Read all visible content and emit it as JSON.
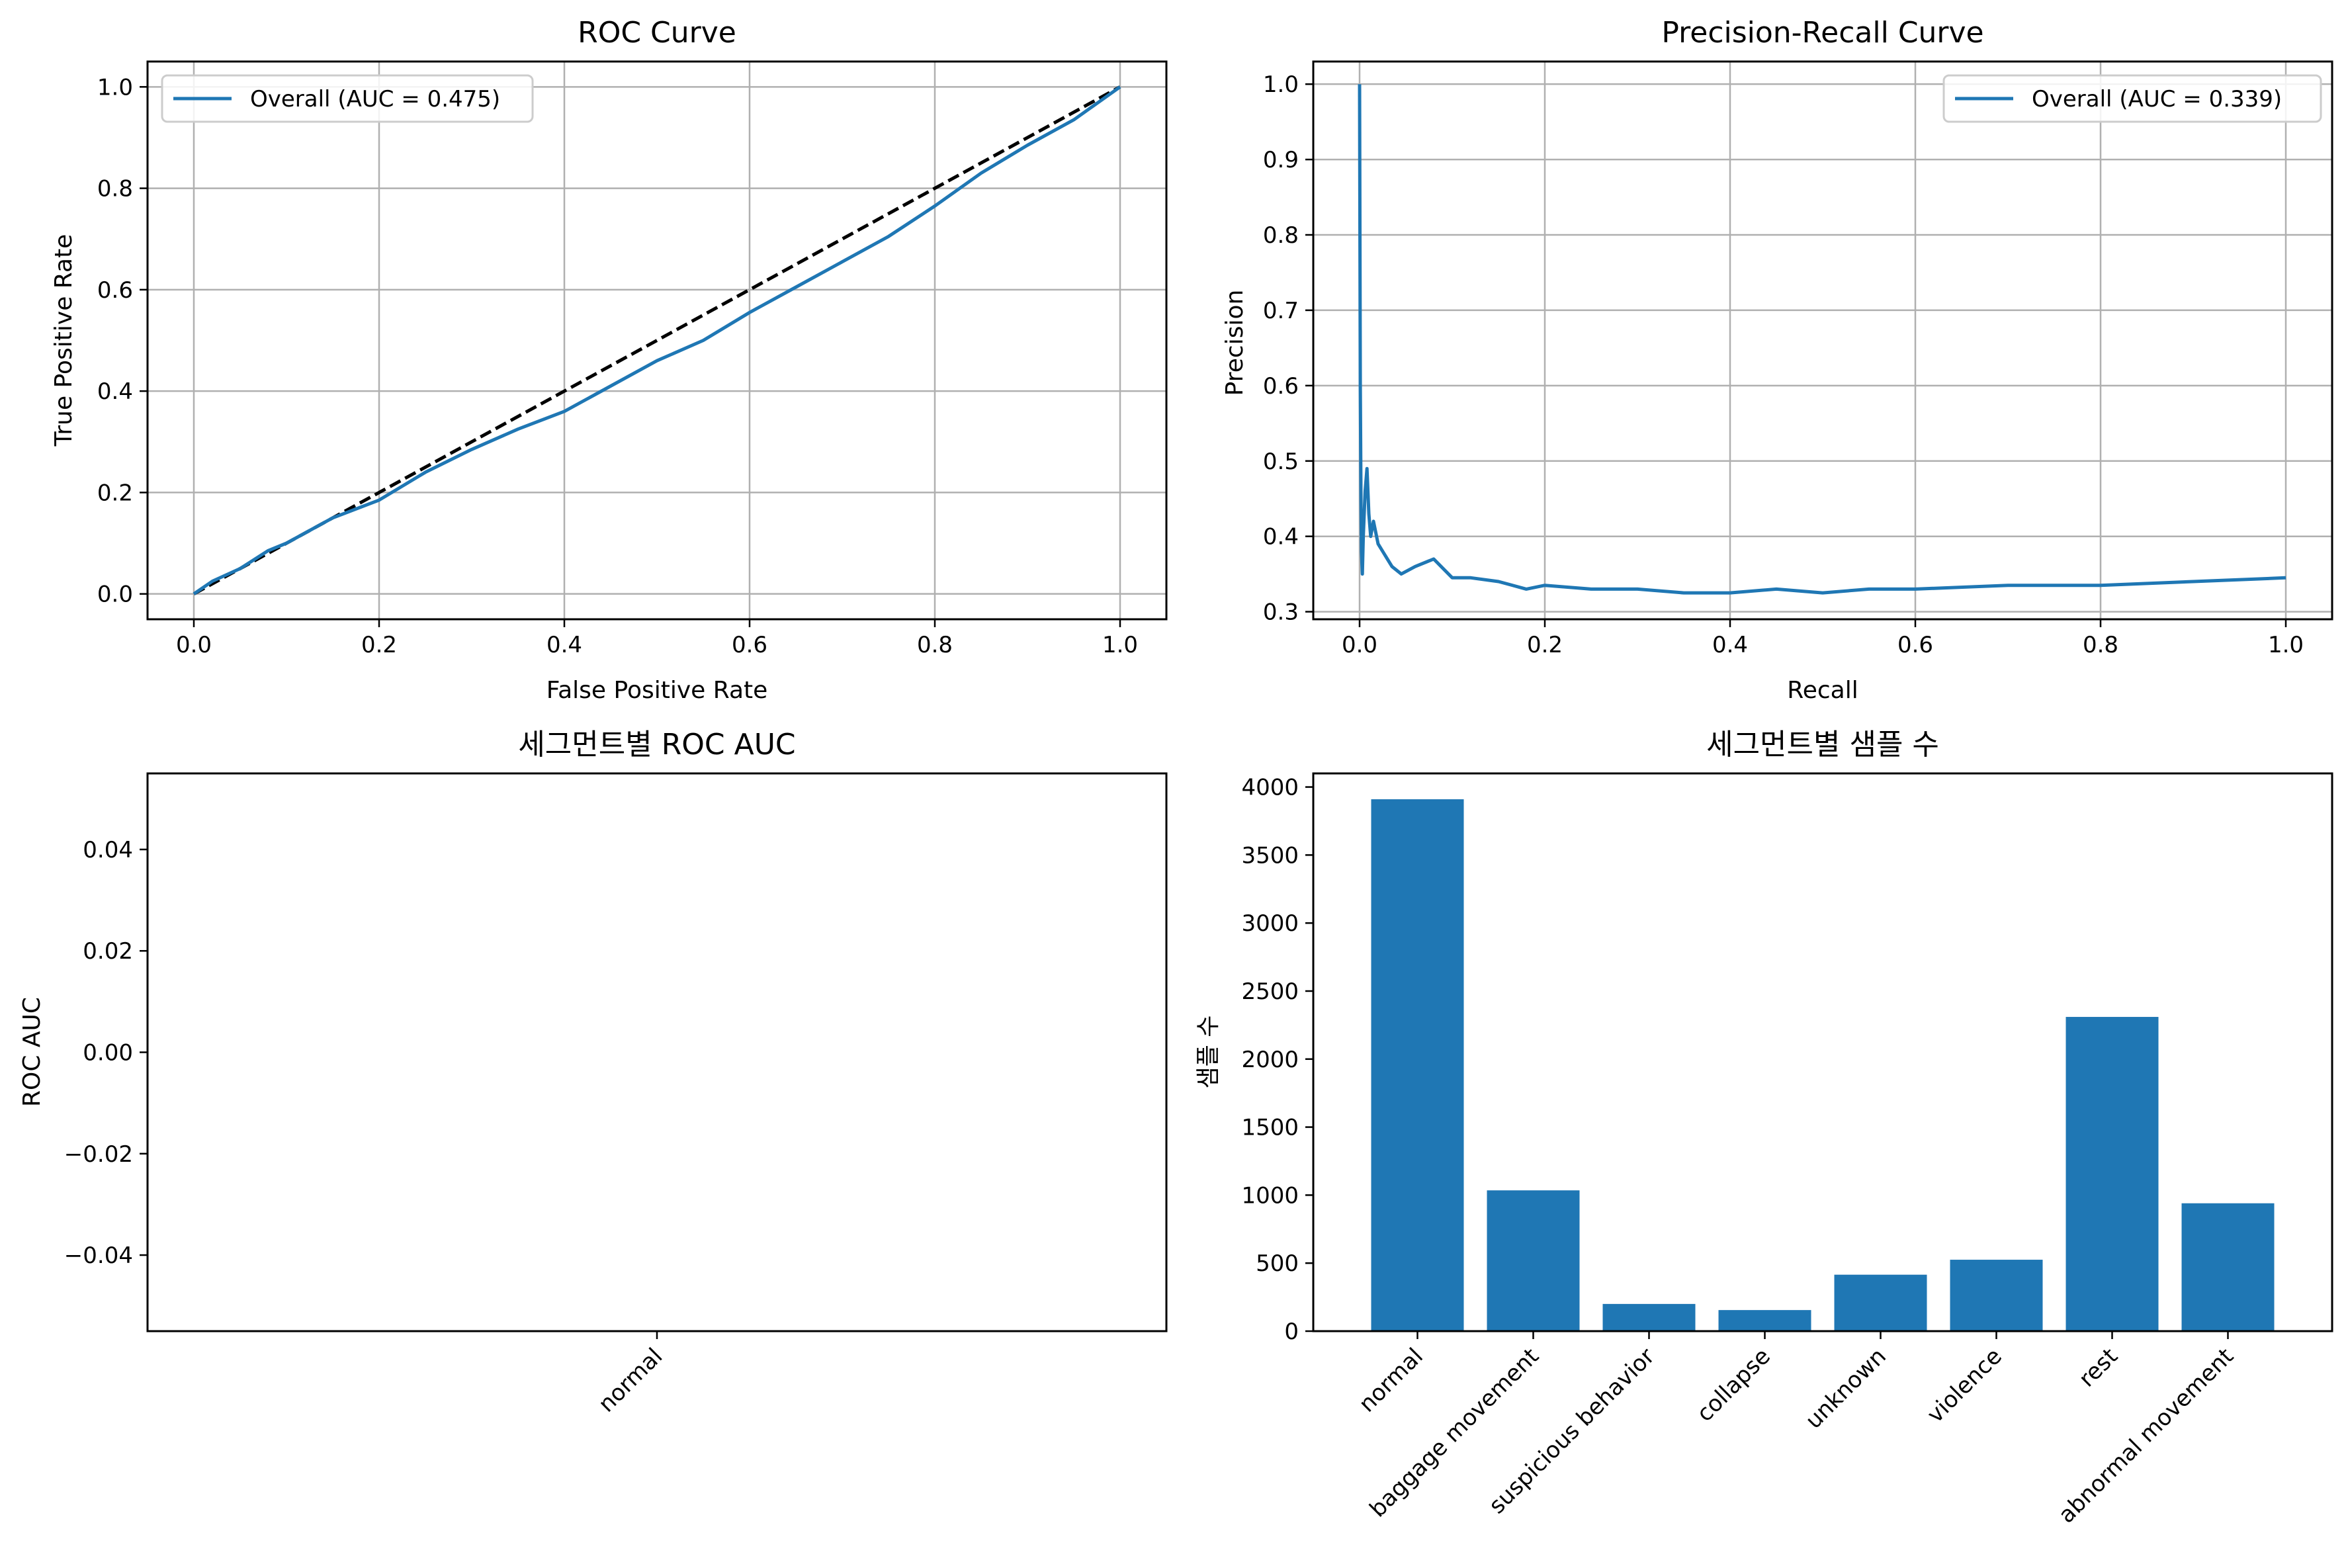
{
  "chart_data": [
    {
      "type": "line",
      "title": "ROC Curve",
      "xlabel": "False Positive Rate",
      "ylabel": "True Positive Rate",
      "xlim": [
        -0.05,
        1.05
      ],
      "ylim": [
        -0.05,
        1.05
      ],
      "xticks": [
        "0.0",
        "0.2",
        "0.4",
        "0.6",
        "0.8",
        "1.0"
      ],
      "yticks": [
        "0.0",
        "0.2",
        "0.4",
        "0.6",
        "0.8",
        "1.0"
      ],
      "grid": true,
      "legend_position": "top-left",
      "series": [
        {
          "name": "Overall (AUC = 0.475)",
          "color": "#1f77b4",
          "x": [
            0,
            0.02,
            0.05,
            0.08,
            0.1,
            0.15,
            0.2,
            0.25,
            0.3,
            0.35,
            0.4,
            0.45,
            0.5,
            0.55,
            0.6,
            0.65,
            0.7,
            0.75,
            0.8,
            0.85,
            0.9,
            0.95,
            1.0
          ],
          "y": [
            0,
            0.025,
            0.05,
            0.085,
            0.1,
            0.15,
            0.185,
            0.24,
            0.285,
            0.325,
            0.36,
            0.41,
            0.46,
            0.5,
            0.555,
            0.605,
            0.655,
            0.705,
            0.765,
            0.83,
            0.885,
            0.935,
            1.0
          ]
        },
        {
          "name": "",
          "color": "#000000",
          "style": "dashed",
          "x": [
            0,
            1
          ],
          "y": [
            0,
            1
          ]
        }
      ]
    },
    {
      "type": "line",
      "title": "Precision-Recall Curve",
      "xlabel": "Recall",
      "ylabel": "Precision",
      "xlim": [
        -0.05,
        1.05
      ],
      "ylim": [
        0.29,
        1.03
      ],
      "xticks": [
        "0.0",
        "0.2",
        "0.4",
        "0.6",
        "0.8",
        "1.0"
      ],
      "yticks": [
        "0.3",
        "0.4",
        "0.5",
        "0.6",
        "0.7",
        "0.8",
        "0.9",
        "1.0"
      ],
      "grid": true,
      "legend_position": "top-right",
      "series": [
        {
          "name": "Overall (AUC = 0.339)",
          "color": "#1f77b4",
          "x": [
            0,
            0.0008,
            0.0015,
            0.002,
            0.003,
            0.004,
            0.006,
            0.008,
            0.01,
            0.012,
            0.015,
            0.02,
            0.025,
            0.03,
            0.035,
            0.045,
            0.06,
            0.08,
            0.1,
            0.12,
            0.15,
            0.18,
            0.2,
            0.25,
            0.3,
            0.35,
            0.4,
            0.45,
            0.5,
            0.55,
            0.6,
            0.7,
            0.8,
            0.9,
            1.0
          ],
          "y": [
            1.0,
            0.6,
            0.45,
            0.38,
            0.35,
            0.4,
            0.46,
            0.49,
            0.43,
            0.4,
            0.42,
            0.39,
            0.38,
            0.37,
            0.36,
            0.35,
            0.36,
            0.37,
            0.345,
            0.345,
            0.34,
            0.33,
            0.335,
            0.33,
            0.33,
            0.325,
            0.325,
            0.33,
            0.325,
            0.33,
            0.33,
            0.335,
            0.335,
            0.34,
            0.345
          ]
        }
      ]
    },
    {
      "type": "bar",
      "title": "세그먼트별 ROC AUC",
      "xlabel": "",
      "ylabel": "ROC AUC",
      "categories": [
        "normal"
      ],
      "values": [
        0
      ],
      "ylim": [
        -0.055,
        0.055
      ],
      "yticks": [
        "−0.04",
        "−0.02",
        "0.00",
        "0.02",
        "0.04"
      ],
      "grid": false
    },
    {
      "type": "bar",
      "title": "세그먼트별 샘플 수",
      "xlabel": "",
      "ylabel": "샘플 수",
      "categories": [
        "normal",
        "baggage movement",
        "suspicious behavior",
        "collapse",
        "unknown",
        "violence",
        "rest",
        "abnormal movement"
      ],
      "values": [
        3910,
        1035,
        200,
        155,
        415,
        525,
        2310,
        940
      ],
      "ylim": [
        0,
        4100
      ],
      "yticks": [
        "0",
        "500",
        "1000",
        "1500",
        "2000",
        "2500",
        "3000",
        "3500",
        "4000"
      ],
      "color": "#1f77b4",
      "grid": false
    }
  ]
}
